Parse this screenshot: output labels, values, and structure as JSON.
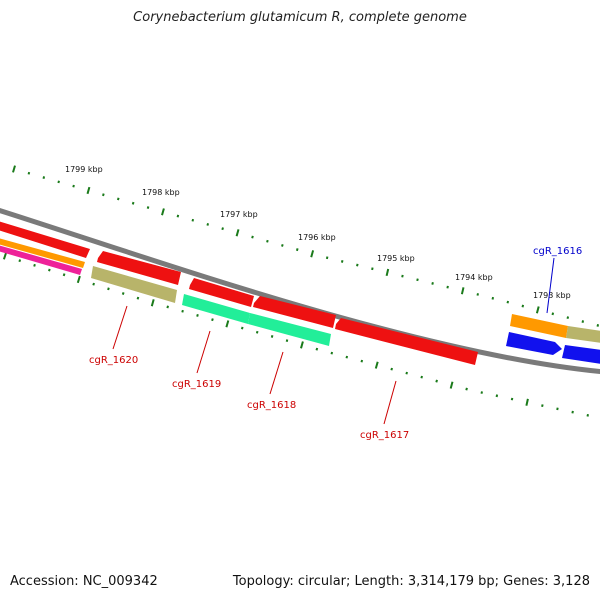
{
  "header": {
    "title": "Corynebacterium glutamicum R, complete genome"
  },
  "footer": {
    "accession": "Accession: NC_009342",
    "summary": "Topology: circular; Length: 3,314,179 bp; Genes: 3,128"
  },
  "scale_labels": [
    "1799 kbp",
    "1798 kbp",
    "1797 kbp",
    "1796 kbp",
    "1795 kbp",
    "1794 kbp",
    "1793 kbp"
  ],
  "gene_labels": [
    {
      "text": "cgR_1620",
      "color": "#cc0000"
    },
    {
      "text": "cgR_1619",
      "color": "#cc0000"
    },
    {
      "text": "cgR_1618",
      "color": "#cc0000"
    },
    {
      "text": "cgR_1617",
      "color": "#cc0000"
    },
    {
      "text": "cgR_1616",
      "color": "#0000cc"
    }
  ],
  "colors": {
    "backbone": "#7a7a7a",
    "tick": "#1a7a1a",
    "cds_red": "#ee1111",
    "orange": "#ff9900",
    "tan": "#b8b46a",
    "green": "#22ee99",
    "blue": "#1111ee",
    "pink": "#ee2299"
  }
}
